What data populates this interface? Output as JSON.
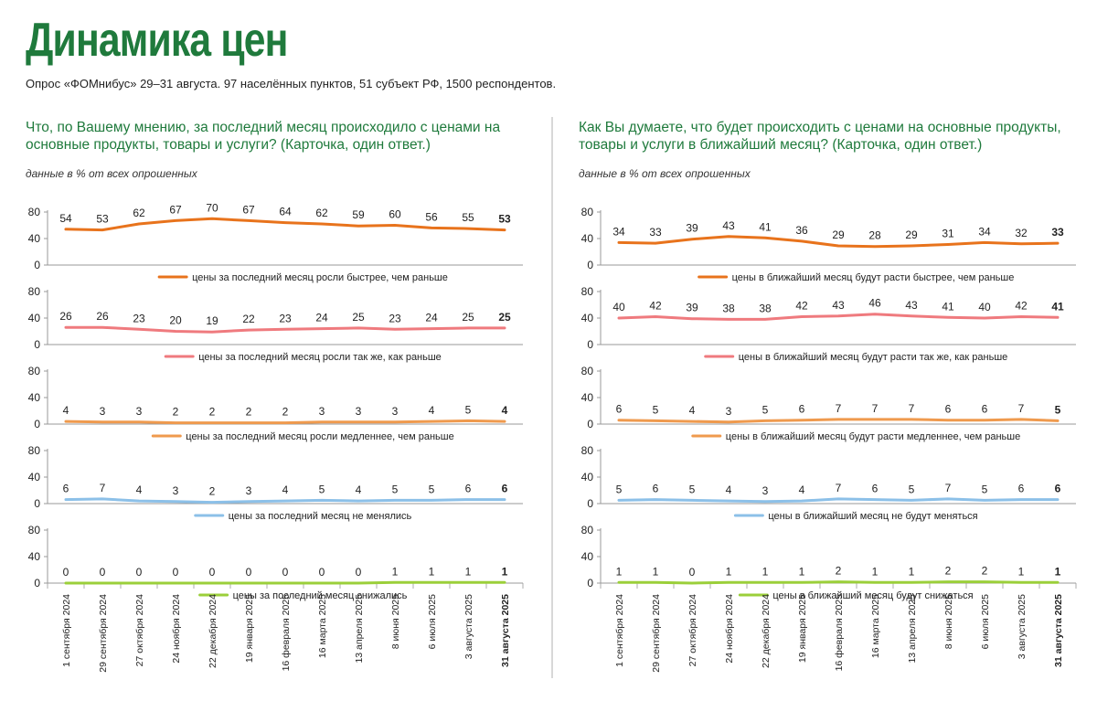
{
  "title": "Динамика цен",
  "subtitle": "Опрос «ФОМнибус» 29–31 августа. 97 населённых пунктов, 51 субъект РФ, 1500 респондентов.",
  "colors": {
    "title": "#1f7a3c",
    "orange": "#e8731c",
    "pink": "#ef7a7e",
    "lightorange": "#ef9a4e",
    "blue": "#8cc0e8",
    "green": "#9bcf3a"
  },
  "chart_data": [
    {
      "type": "line",
      "question": "Что, по Вашему мнению, за последний месяц происходило с ценами на основные продукты, товары и услуги? (Карточка, один ответ.)",
      "note": "данные в % от всех опрошенных",
      "x": [
        "1 сентября 2024",
        "29 сентября 2024",
        "27 октября 2024",
        "24 ноября 2024",
        "22 декабря 2024",
        "19 января 2025",
        "16 февраля 2025",
        "16 марта 2025",
        "13 апреля 2025",
        "8 июня 2025",
        "6 июля 2025",
        "3 августа 2025",
        "31 августа 2025"
      ],
      "ylim": [
        0,
        80
      ],
      "yticks": [
        "0",
        "40",
        "80"
      ],
      "series": [
        {
          "name": "цены за последний месяц росли быстрее, чем раньше",
          "color": "orange",
          "values": [
            54,
            53,
            62,
            67,
            70,
            67,
            64,
            62,
            59,
            60,
            56,
            55,
            53
          ]
        },
        {
          "name": "цены за последний месяц росли так же, как раньше",
          "color": "pink",
          "values": [
            26,
            26,
            23,
            20,
            19,
            22,
            23,
            24,
            25,
            23,
            24,
            25,
            25
          ]
        },
        {
          "name": "цены за последний месяц росли медленнее, чем раньше",
          "color": "lightorange",
          "values": [
            4,
            3,
            3,
            2,
            2,
            2,
            2,
            3,
            3,
            3,
            4,
            5,
            4
          ]
        },
        {
          "name": "цены за последний месяц не менялись",
          "color": "blue",
          "values": [
            6,
            7,
            4,
            3,
            2,
            3,
            4,
            5,
            4,
            5,
            5,
            6,
            6
          ]
        },
        {
          "name": "цены за последний месяц снижались",
          "color": "green",
          "values": [
            0,
            0,
            0,
            0,
            0,
            0,
            0,
            0,
            0,
            1,
            1,
            1,
            1
          ]
        }
      ]
    },
    {
      "type": "line",
      "question": "Как Вы думаете, что будет происходить с ценами на основные продукты, товары и услуги в ближайший месяц? (Карточка, один ответ.)",
      "note": "данные в % от всех опрошенных",
      "x": [
        "1 сентября 2024",
        "29 сентября 2024",
        "27 октября 2024",
        "24 ноября 2024",
        "22 декабря 2024",
        "19 января 2025",
        "16 февраля 2025",
        "16 марта 2025",
        "13 апреля 2025",
        "8 июня 2025",
        "6 июля 2025",
        "3 августа 2025",
        "31 августа 2025"
      ],
      "ylim": [
        0,
        80
      ],
      "yticks": [
        "0",
        "40",
        "80"
      ],
      "series": [
        {
          "name": "цены в ближайший месяц будут расти быстрее, чем раньше",
          "color": "orange",
          "values": [
            34,
            33,
            39,
            43,
            41,
            36,
            29,
            28,
            29,
            31,
            34,
            32,
            33
          ]
        },
        {
          "name": "цены в ближайший месяц будут расти так же, как раньше",
          "color": "pink",
          "values": [
            40,
            42,
            39,
            38,
            38,
            42,
            43,
            46,
            43,
            41,
            40,
            42,
            41
          ]
        },
        {
          "name": "цены в ближайший месяц будут расти медленнее, чем раньше",
          "color": "lightorange",
          "values": [
            6,
            5,
            4,
            3,
            5,
            6,
            7,
            7,
            7,
            6,
            6,
            7,
            5
          ]
        },
        {
          "name": "цены в ближайший месяц не будут меняться",
          "color": "blue",
          "values": [
            5,
            6,
            5,
            4,
            3,
            4,
            7,
            6,
            5,
            7,
            5,
            6,
            6
          ]
        },
        {
          "name": "цены в ближайший месяц будут снижаться",
          "color": "green",
          "values": [
            1,
            1,
            0,
            1,
            1,
            1,
            2,
            1,
            1,
            2,
            2,
            1,
            1
          ]
        }
      ]
    }
  ]
}
